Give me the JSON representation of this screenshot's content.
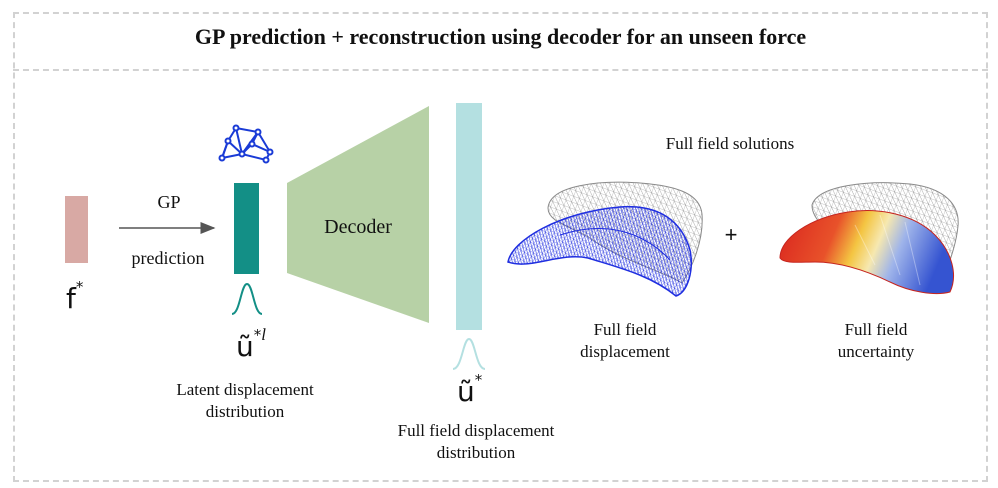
{
  "title": "GP prediction + reconstruction using decoder for an unseen force",
  "input": {
    "symbol": "f",
    "sup": "*"
  },
  "arrow": {
    "line1": "GP",
    "line2": "prediction"
  },
  "latent": {
    "symbol": "ũ",
    "sup": "*",
    "sup_italic": "l",
    "caption_line1": "Latent displacement",
    "caption_line2": "distribution"
  },
  "decoder": {
    "label": "Decoder"
  },
  "output": {
    "symbol": "ũ",
    "sup": "*",
    "caption_line1": "Full field displacement",
    "caption_line2": "distribution"
  },
  "solutions": {
    "heading": "Full field solutions",
    "plus": "+",
    "displacement_line1": "Full field",
    "displacement_line2": "displacement",
    "uncertainty_line1": "Full field",
    "uncertainty_line2": "uncertainty"
  },
  "colors": {
    "input_bar": "#d8a9a4",
    "latent_bar": "#138f86",
    "decoder": "#b7d1a6",
    "output_bar": "#b4e0e1",
    "network_icon": "#1a3bd6",
    "mesh_blue": "#1f2ee0",
    "mesh_gray": "#8a8a8a",
    "uncertainty_red": "#d9231e",
    "uncertainty_yellow": "#f4c542",
    "uncertainty_blue": "#3554d1"
  },
  "icons": [
    "graph-network-icon",
    "gaussian-curve-icon",
    "liver-mesh-icon"
  ]
}
